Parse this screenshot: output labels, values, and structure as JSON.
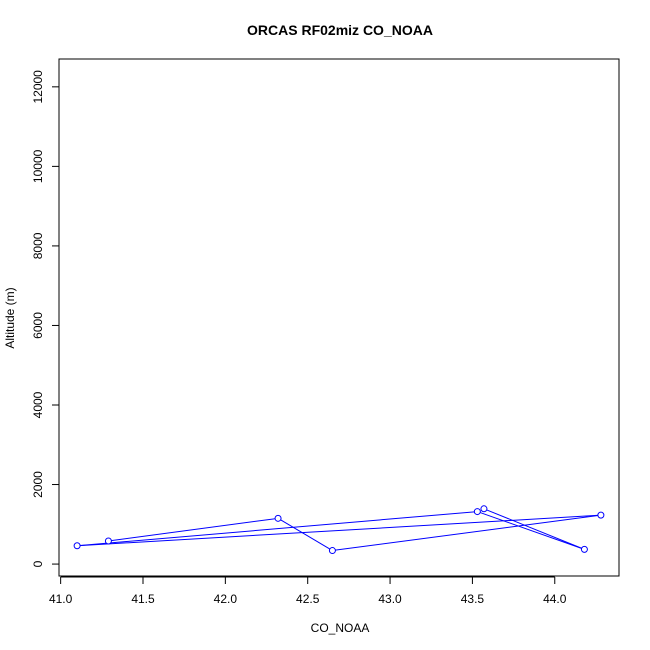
{
  "chart_data": {
    "type": "line",
    "title": "ORCAS RF02miz CO_NOAA",
    "xlabel": "CO_NOAA",
    "ylabel": "Altitude (m)",
    "xlim": [
      40.99,
      44.39
    ],
    "ylim": [
      -300,
      12700
    ],
    "xticks": [
      "41.0",
      "41.5",
      "42.0",
      "42.5",
      "43.0",
      "43.5",
      "44.0"
    ],
    "yticks": [
      "0",
      "2000",
      "4000",
      "6000",
      "8000",
      "10000",
      "12000"
    ],
    "grid": false,
    "series": [
      {
        "color": "#0000ff",
        "marker": "open-circle",
        "points": [
          {
            "x": 41.29,
            "y": 580
          },
          {
            "x": 42.32,
            "y": 1150
          },
          {
            "x": 42.65,
            "y": 340
          },
          {
            "x": 44.28,
            "y": 1230
          },
          {
            "x": 41.1,
            "y": 460
          },
          {
            "x": 43.53,
            "y": 1320
          },
          {
            "x": 44.18,
            "y": 370
          },
          {
            "x": 43.57,
            "y": 1390
          }
        ]
      }
    ]
  }
}
